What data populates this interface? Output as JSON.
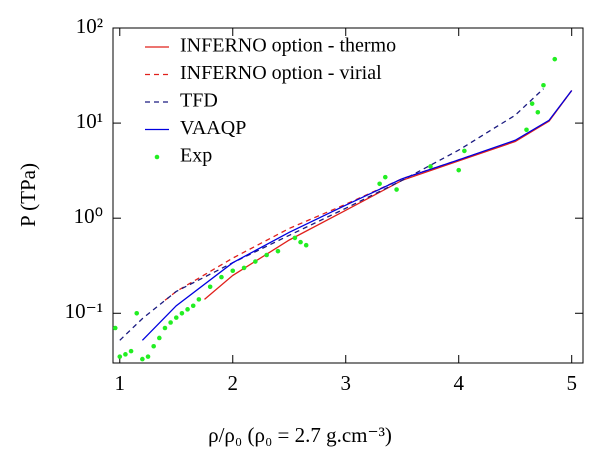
{
  "chart_data": {
    "type": "line",
    "xlabel": "ρ/ρ₀ (ρ₀ = 2.7 g.cm⁻³)",
    "ylabel": "P (TPa)",
    "xlim": [
      0.94,
      5.1
    ],
    "ylim": [
      0.03,
      100
    ],
    "ylog": true,
    "xticks": [
      1,
      2,
      3,
      4,
      5
    ],
    "yticks": [
      {
        "value": 0.1,
        "label": "10⁻¹"
      },
      {
        "value": 1,
        "label": "10⁰"
      },
      {
        "value": 10,
        "label": "10¹"
      },
      {
        "value": 100,
        "label": "10²"
      }
    ],
    "legend": "upper left",
    "series": [
      {
        "name": "INFERNO option - thermo",
        "color": "#e0201b",
        "style": "solid",
        "x": [
          1.75,
          2,
          2.5,
          3,
          3.5,
          4,
          4.5,
          4.8,
          5.0
        ],
        "values": [
          0.14,
          0.25,
          0.59,
          1.21,
          2.5,
          4.0,
          6.4,
          10.5,
          22
        ]
      },
      {
        "name": "INFERNO option - virial",
        "color": "#e0201b",
        "style": "dashed",
        "x": [
          1.4,
          1.5,
          2,
          2.5,
          3,
          3.5,
          4,
          4.5,
          4.8,
          5.0
        ],
        "values": [
          0.137,
          0.17,
          0.38,
          0.78,
          1.4,
          2.6,
          4.1,
          6.5,
          10.6,
          22
        ]
      },
      {
        "name": "TFD",
        "color": "#1a1a80",
        "style": "dashed",
        "x": [
          1.0,
          1.2,
          1.5,
          2,
          2.5,
          3,
          3.5,
          4,
          4.5,
          4.75
        ],
        "values": [
          0.052,
          0.088,
          0.17,
          0.34,
          0.66,
          1.27,
          2.5,
          5.2,
          12.1,
          23
        ]
      },
      {
        "name": "VAAQP",
        "color": "#0000e0",
        "style": "solid",
        "x": [
          1.2,
          1.5,
          2,
          2.5,
          3,
          3.5,
          4,
          4.5,
          4.8,
          5.0
        ],
        "values": [
          0.052,
          0.12,
          0.34,
          0.71,
          1.37,
          2.6,
          4.1,
          6.6,
          10.7,
          22
        ]
      },
      {
        "name": "Exp",
        "color": "#22ee22",
        "style": "points",
        "x": [
          0.96,
          1.0,
          1.05,
          1.1,
          1.15,
          1.2,
          1.25,
          1.3,
          1.35,
          1.4,
          1.45,
          1.5,
          1.55,
          1.6,
          1.65,
          1.7,
          1.8,
          1.9,
          2.0,
          2.1,
          2.2,
          2.3,
          2.4,
          2.55,
          2.6,
          2.65,
          3.3,
          3.35,
          3.45,
          3.75,
          4.0,
          4.05,
          4.6,
          4.65,
          4.7,
          4.75,
          4.85
        ],
        "values": [
          0.07,
          0.035,
          0.037,
          0.04,
          0.1,
          0.033,
          0.035,
          0.045,
          0.055,
          0.07,
          0.08,
          0.09,
          0.1,
          0.11,
          0.12,
          0.14,
          0.19,
          0.24,
          0.28,
          0.3,
          0.35,
          0.41,
          0.45,
          0.62,
          0.56,
          0.52,
          2.3,
          2.7,
          2.0,
          3.5,
          3.2,
          5.1,
          8.5,
          16,
          13,
          25,
          47
        ]
      }
    ]
  }
}
